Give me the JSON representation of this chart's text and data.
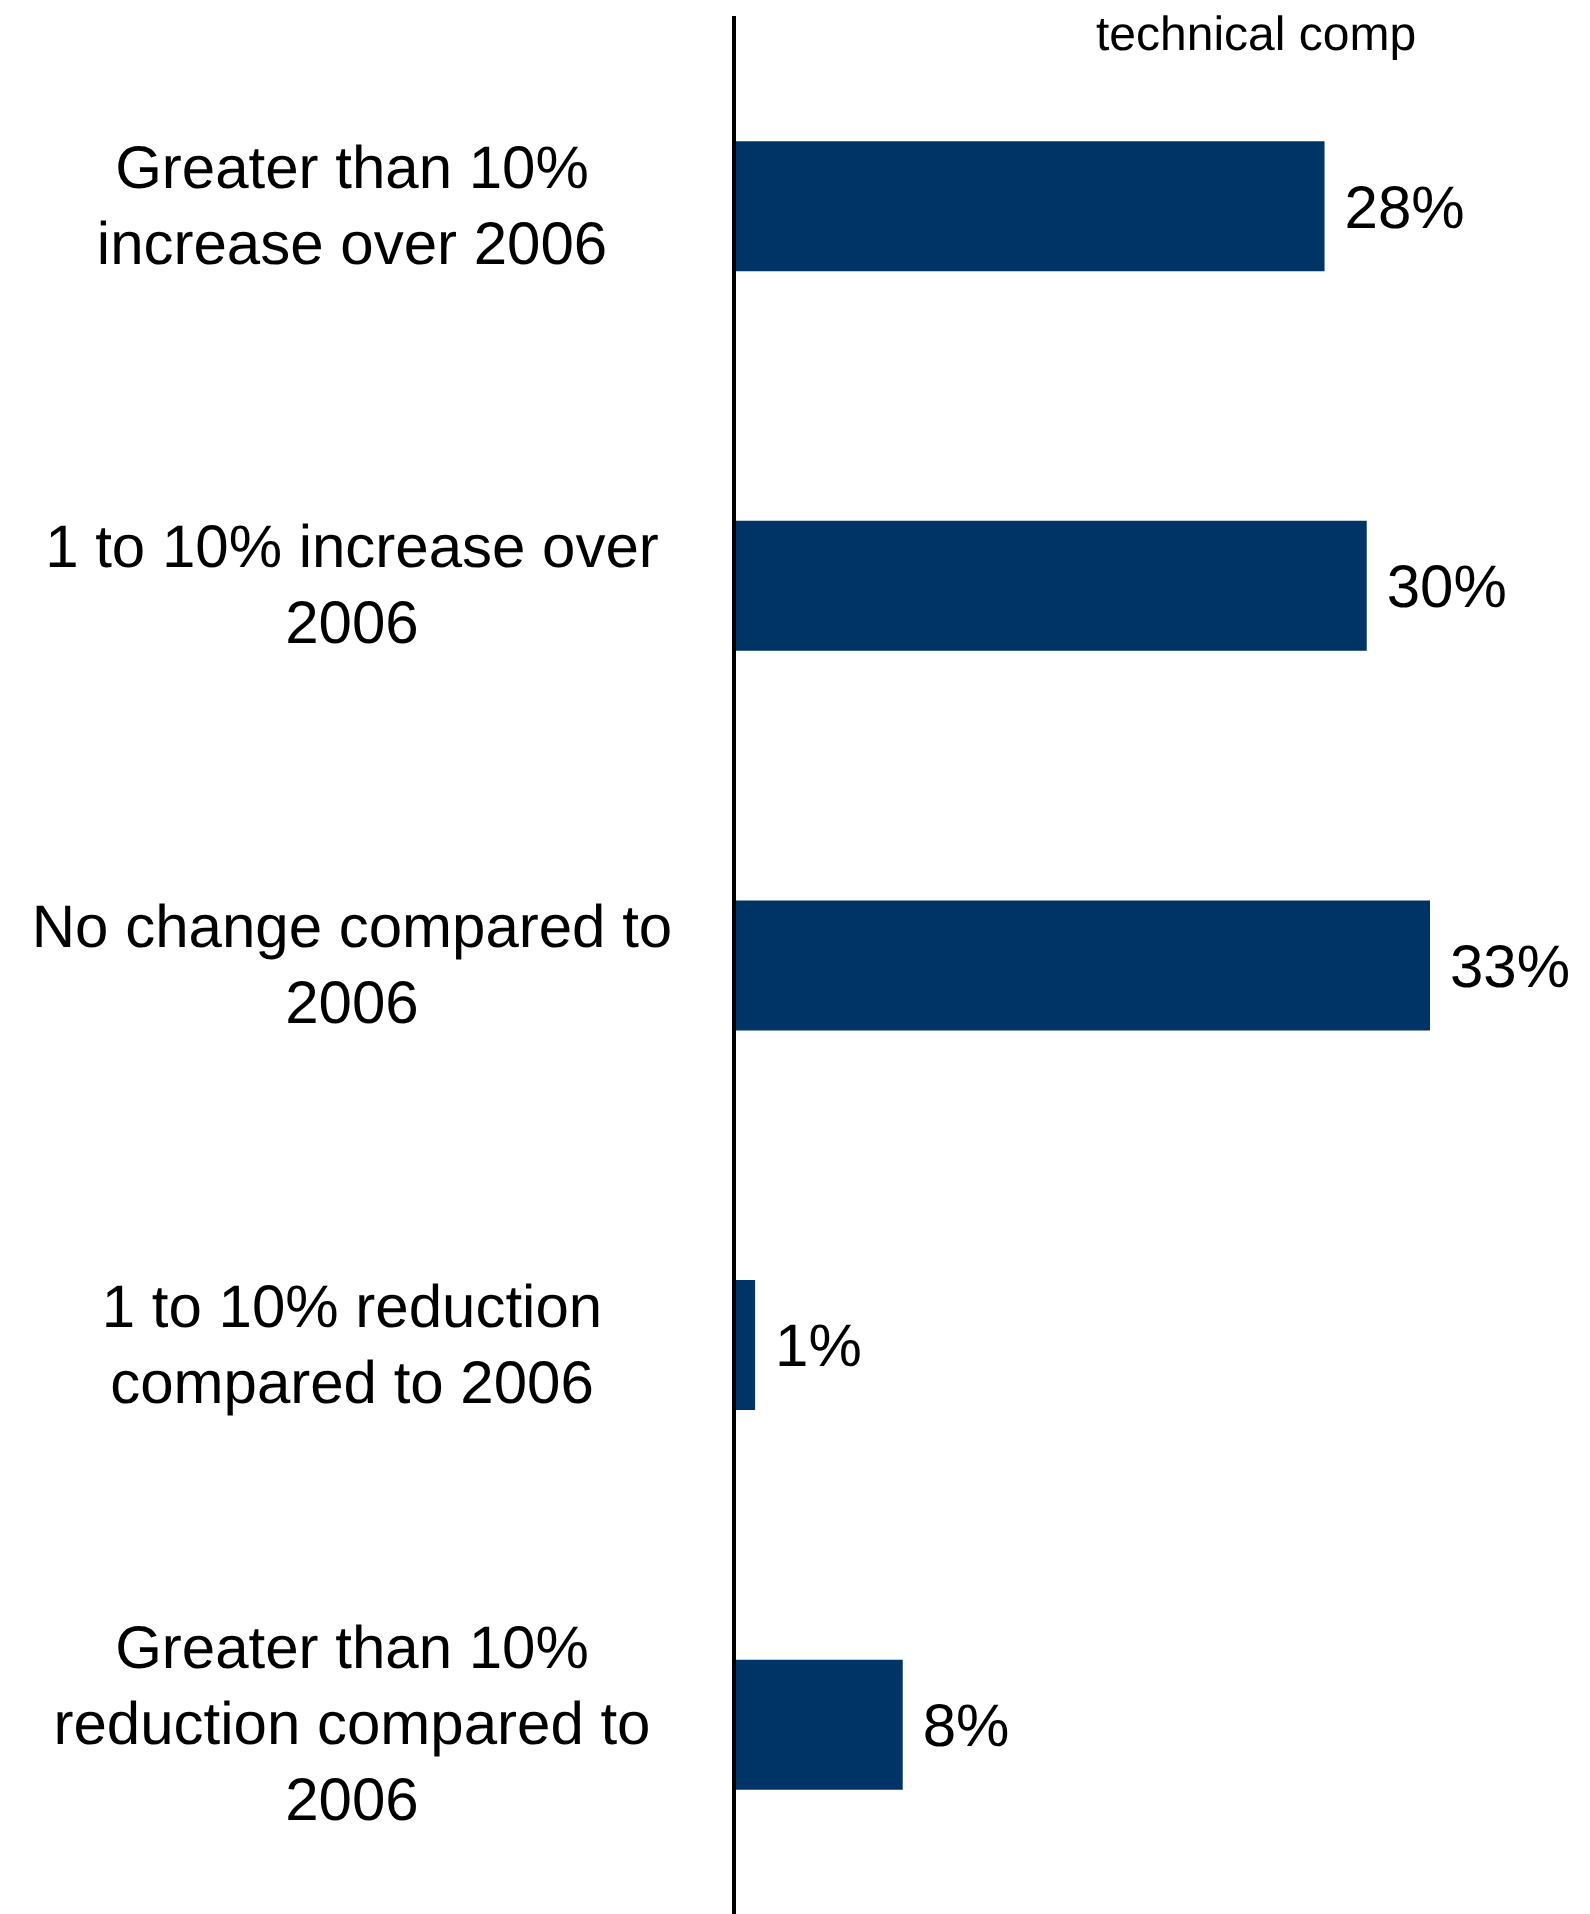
{
  "chart_data": {
    "type": "bar",
    "orientation": "horizontal",
    "title": "technical comp",
    "categories": [
      "Greater than 10% increase over 2006",
      "1 to 10% increase over 2006",
      "No change compared to 2006",
      "1 to 10% reduction compared to 2006",
      "Greater than 10% reduction compared to 2006"
    ],
    "values": [
      28,
      30,
      33,
      1,
      8
    ],
    "value_labels": [
      "28%",
      "30%",
      "33%",
      "1%",
      "8%"
    ],
    "color": "#003366"
  }
}
